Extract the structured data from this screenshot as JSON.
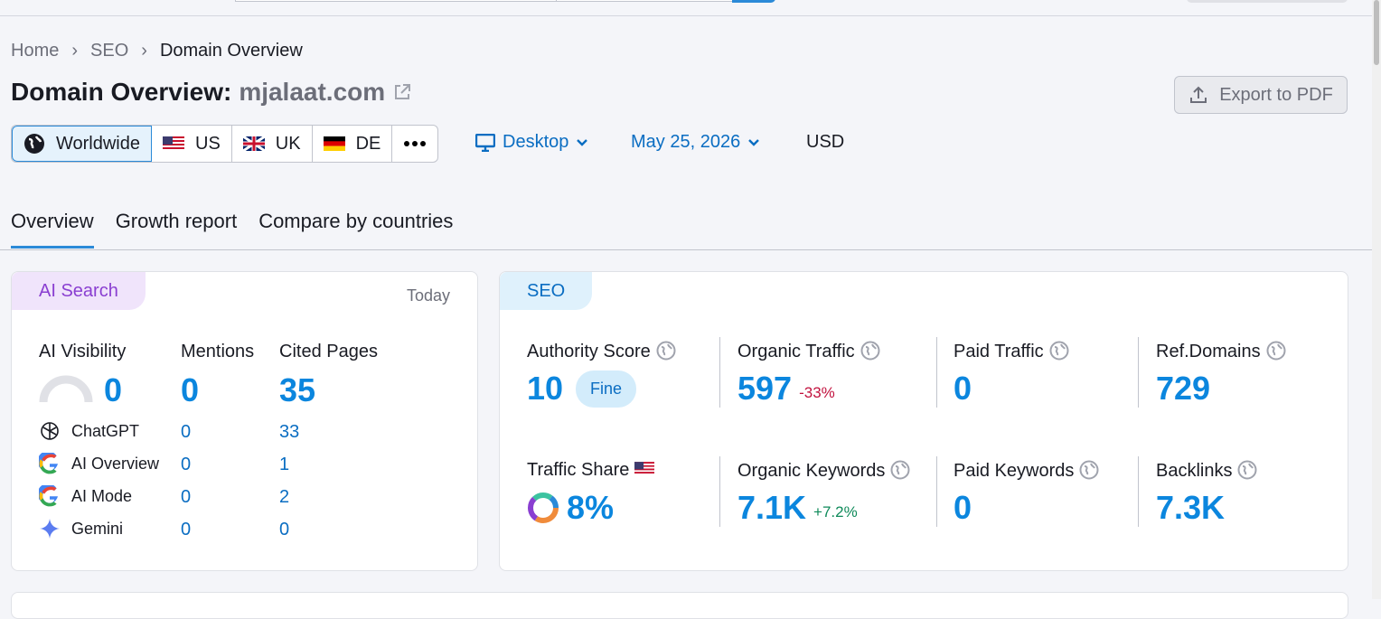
{
  "breadcrumb": [
    "Home",
    "SEO",
    "Domain Overview"
  ],
  "header": {
    "title": "Domain Overview:",
    "domain": "mjalaat.com",
    "export": "Export to PDF"
  },
  "regions": [
    "Worldwide",
    "US",
    "UK",
    "DE"
  ],
  "filters": {
    "device": "Desktop",
    "date": "May 25, 2026",
    "currency": "USD"
  },
  "tabs": [
    "Overview",
    "Growth report",
    "Compare by countries"
  ],
  "ai_search": {
    "label": "AI Search",
    "period": "Today",
    "columns": [
      "AI Visibility",
      "Mentions",
      "Cited Pages"
    ],
    "totals": [
      0,
      0,
      35
    ],
    "rows": [
      {
        "name": "ChatGPT",
        "mentions": 0,
        "cited": 33
      },
      {
        "name": "AI Overview",
        "mentions": 0,
        "cited": 1
      },
      {
        "name": "AI Mode",
        "mentions": 0,
        "cited": 2
      },
      {
        "name": "Gemini",
        "mentions": 0,
        "cited": 0
      }
    ]
  },
  "seo": {
    "label": "SEO",
    "metrics": [
      {
        "name": "Authority Score",
        "value": 10,
        "badge": "Fine"
      },
      {
        "name": "Organic Traffic",
        "value": 597,
        "change": "-33%"
      },
      {
        "name": "Paid Traffic",
        "value": 0
      },
      {
        "name": "Ref.Domains",
        "value": 729
      },
      {
        "name": "Traffic Share",
        "value": "8%"
      },
      {
        "name": "Organic Keywords",
        "value": "7.1K",
        "change": "+7.2%"
      },
      {
        "name": "Paid Keywords",
        "value": 0
      },
      {
        "name": "Backlinks",
        "value": "7.3K"
      }
    ]
  }
}
